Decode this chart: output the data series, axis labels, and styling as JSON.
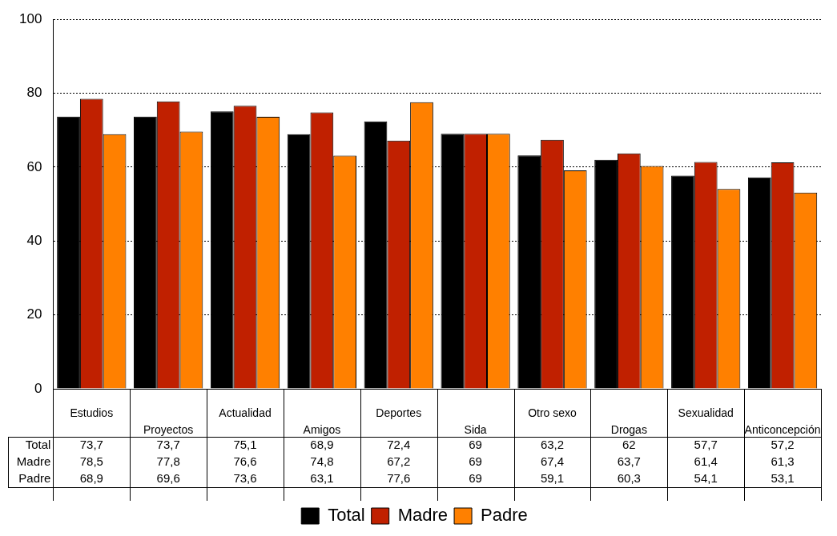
{
  "chart_data": {
    "type": "bar",
    "categories": [
      "Estudios",
      "Proyectos",
      "Actualidad",
      "Amigos",
      "Deportes",
      "Sida",
      "Otro sexo",
      "Drogas",
      "Sexualidad",
      "Anticoncepción"
    ],
    "series": [
      {
        "name": "Total",
        "color": "#000000",
        "values": [
          73.7,
          73.7,
          75.1,
          68.9,
          72.4,
          69,
          63.2,
          62,
          57.7,
          57.2
        ],
        "value_labels": [
          "73,7",
          "73,7",
          "75,1",
          "68,9",
          "72,4",
          "69",
          "63,2",
          "62",
          "57,7",
          "57,2"
        ]
      },
      {
        "name": "Madre",
        "color": "#c02000",
        "values": [
          78.5,
          77.8,
          76.6,
          74.8,
          67.2,
          69,
          67.4,
          63.7,
          61.4,
          61.3
        ],
        "value_labels": [
          "78,5",
          "77,8",
          "76,6",
          "74,8",
          "67,2",
          "69",
          "67,4",
          "63,7",
          "61,4",
          "61,3"
        ]
      },
      {
        "name": "Padre",
        "color": "#ff8000",
        "values": [
          68.9,
          69.6,
          73.6,
          63.1,
          77.6,
          69,
          59.1,
          60.3,
          54.1,
          53.1
        ],
        "value_labels": [
          "68,9",
          "69,6",
          "73,6",
          "63,1",
          "77,6",
          "69",
          "59,1",
          "60,3",
          "54,1",
          "53,1"
        ]
      }
    ],
    "ylim": [
      0,
      100
    ],
    "yticks": [
      0,
      20,
      40,
      60,
      80,
      100
    ],
    "grid": "y",
    "line_style": "dotted",
    "legend": "bottom"
  }
}
